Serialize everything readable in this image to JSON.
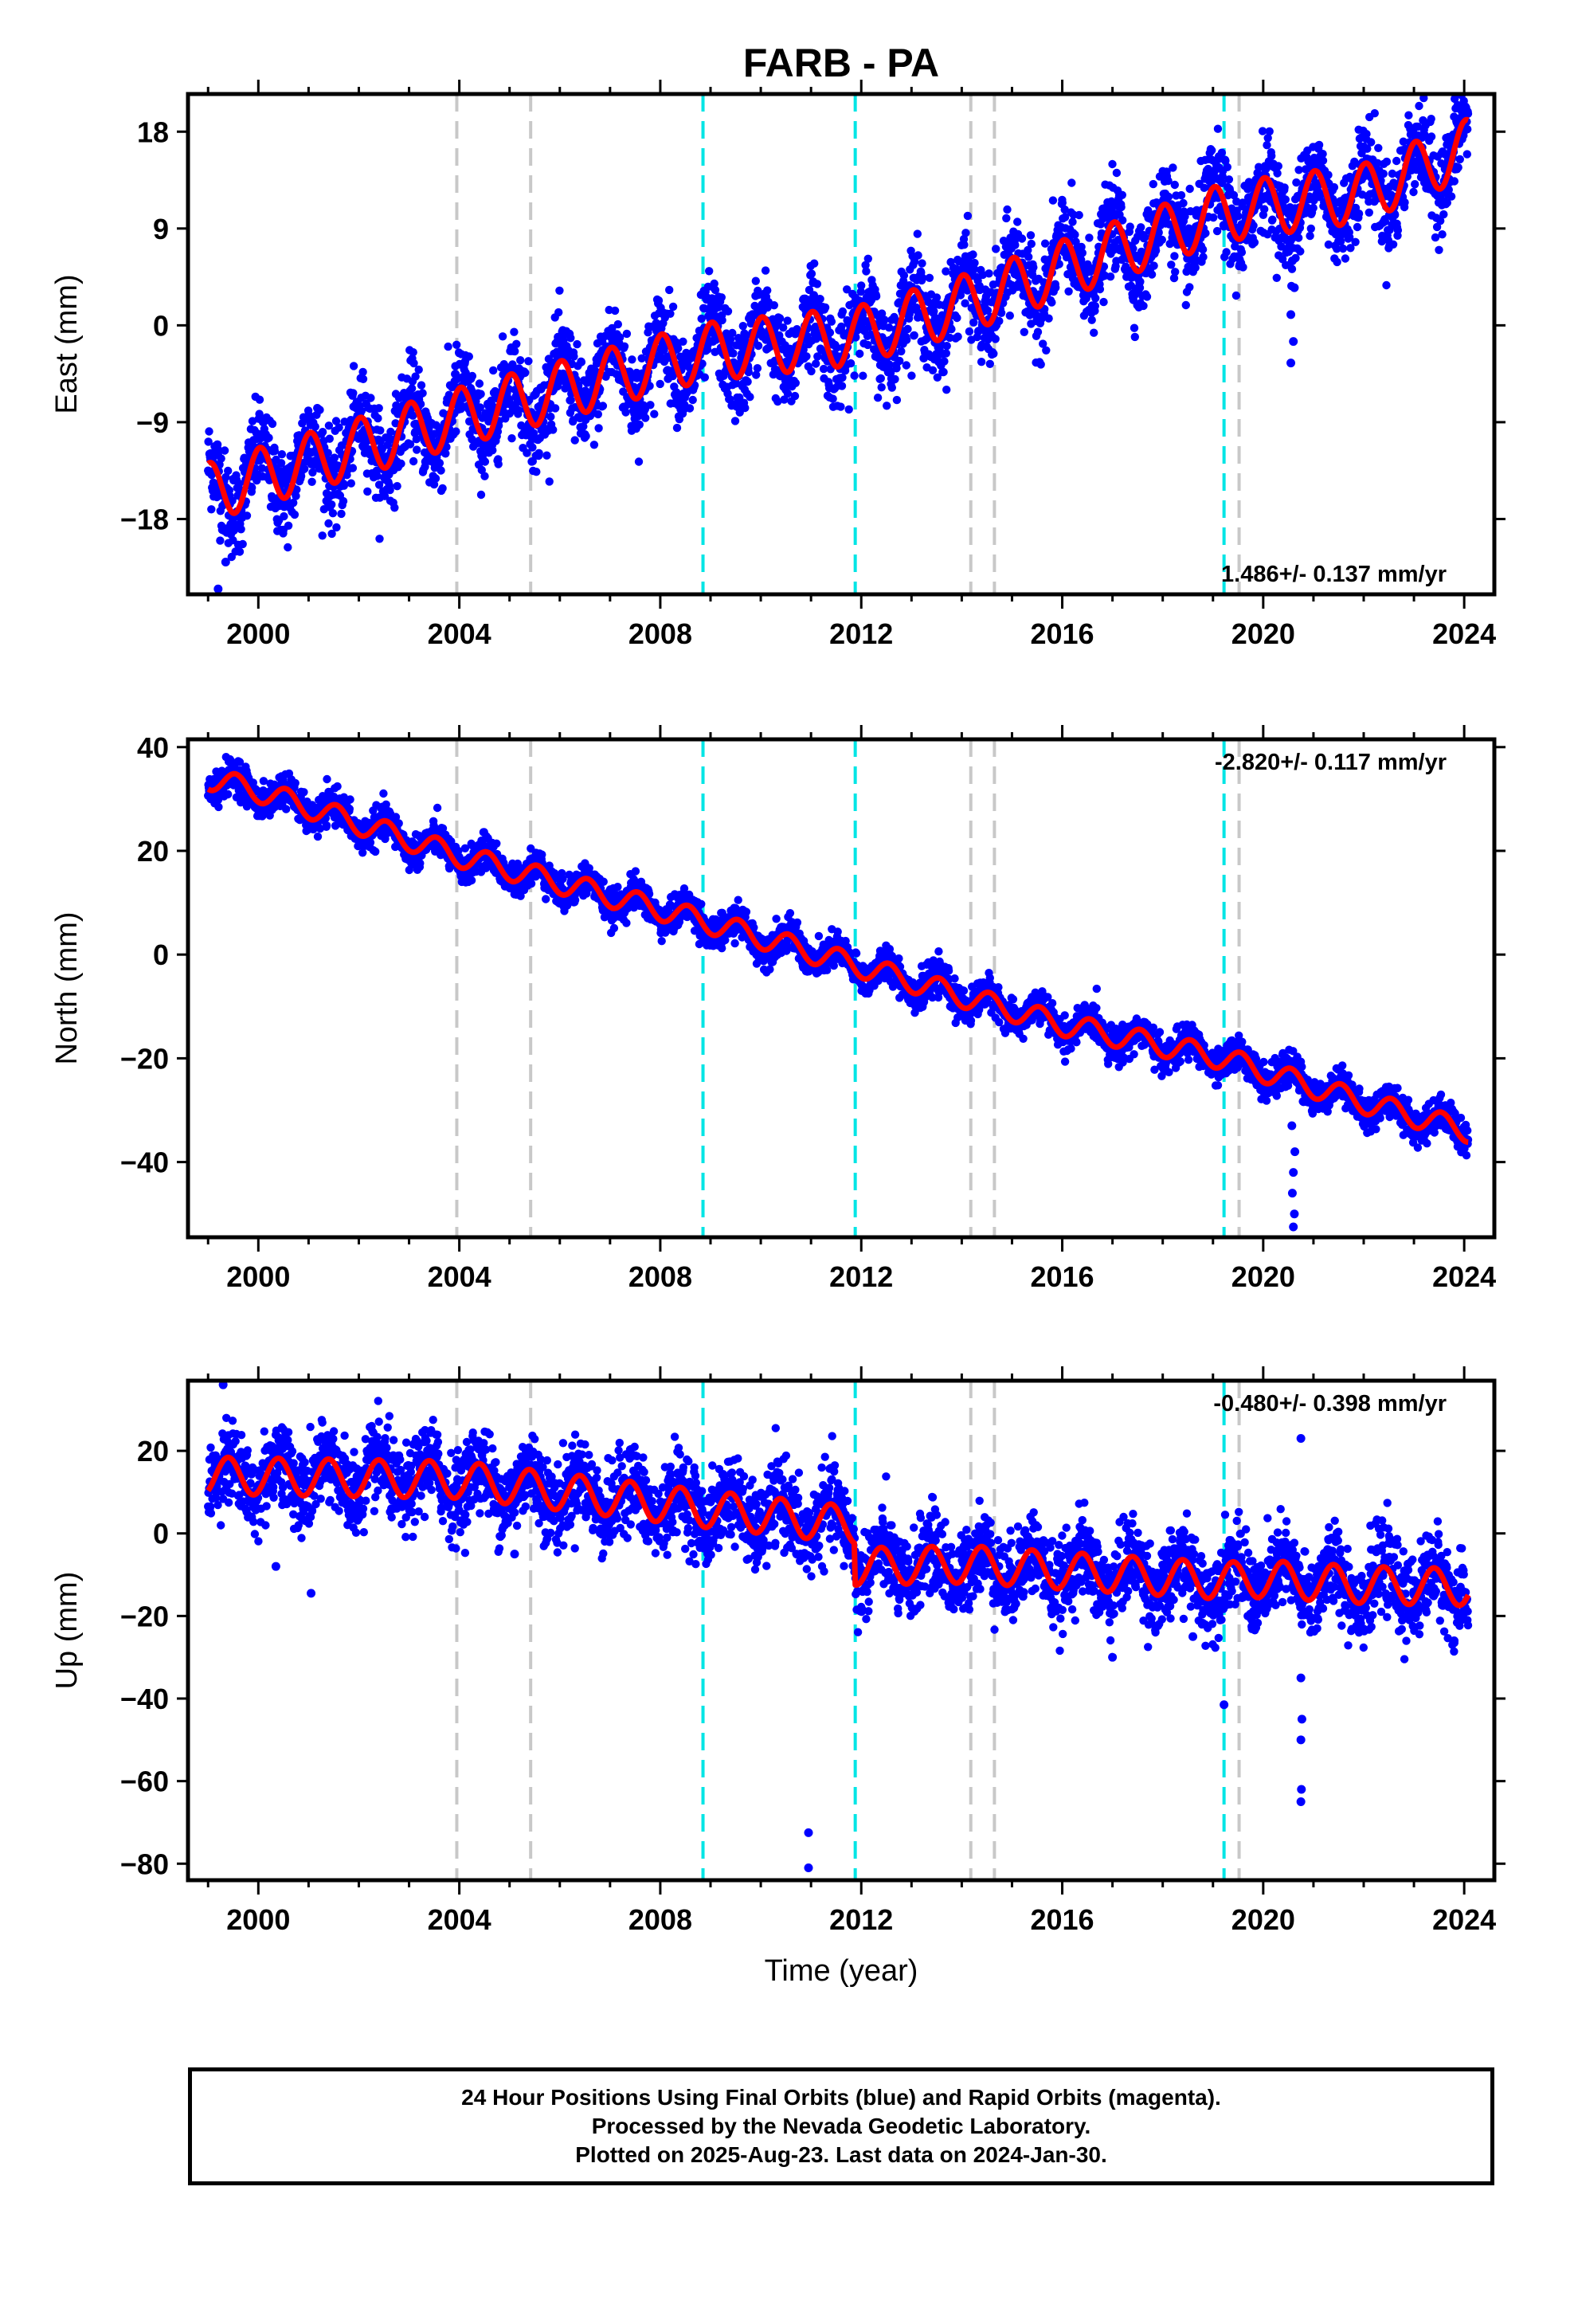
{
  "chart_data": {
    "type": "scatter",
    "title": "FARB - PA",
    "xlabel": "Time (year)",
    "x_range": [
      1998.6,
      2024.6
    ],
    "x_ticks": [
      2000,
      2004,
      2008,
      2012,
      2016,
      2020,
      2024
    ],
    "x_tick_labels": [
      "2000",
      "2004",
      "2008",
      "2012",
      "2016",
      "2020",
      "2024"
    ],
    "data_start": 1999.0,
    "data_end": 2024.08,
    "events": [
      {
        "year": 2003.95,
        "color": "#c8c8c8"
      },
      {
        "year": 2005.42,
        "color": "#c8c8c8"
      },
      {
        "year": 2008.85,
        "color": "#00e5e5"
      },
      {
        "year": 2011.88,
        "color": "#00e5e5"
      },
      {
        "year": 2014.18,
        "color": "#c8c8c8"
      },
      {
        "year": 2014.65,
        "color": "#c8c8c8"
      },
      {
        "year": 2019.22,
        "color": "#00e5e5"
      },
      {
        "year": 2019.52,
        "color": "#c8c8c8"
      }
    ],
    "colors": {
      "points": "#0000ff",
      "model": "#ff0000",
      "frame": "#000000"
    },
    "panels": [
      {
        "name": "east",
        "ylabel": "East (mm)",
        "ylim": [
          -25,
          21.5
        ],
        "yticks": [
          18,
          9,
          0,
          -9,
          -18
        ],
        "ytick_labels": [
          "18",
          "9",
          "0",
          "-9",
          "-18"
        ],
        "rate_text": "1.486+/- 0.137 mm/yr",
        "rate_position": "bottom-right",
        "model": {
          "knots_year": [
            1999.0,
            2004.0,
            2008.85,
            2011.88,
            2014.18,
            2016.0,
            2019.22,
            2020.0,
            2022.0,
            2024.08
          ],
          "knots_mm": [
            -15.5,
            -8.5,
            -2.5,
            -1.0,
            2.2,
            5.2,
            10.5,
            11.0,
            12.3,
            16.5
          ],
          "seasonal_amplitude_mm": 2.7,
          "seasonal_phase_year": 0.78,
          "point_scatter_mm": 2.1
        },
        "outliers": [
          {
            "x": 2020.55,
            "y": -3.5
          },
          {
            "x": 2020.6,
            "y": -1.5
          },
          {
            "x": 2020.55,
            "y": 1.0
          },
          {
            "x": 2020.62,
            "y": 3.5
          },
          {
            "x": 2020.58,
            "y": 6.0
          },
          {
            "x": 1999.2,
            "y": -24.5
          },
          {
            "x": 1999.35,
            "y": -22.0
          }
        ]
      },
      {
        "name": "north",
        "ylabel": "North (mm)",
        "ylim": [
          -54.5,
          41.5
        ],
        "yticks": [
          40,
          20,
          0,
          -20,
          -40
        ],
        "ytick_labels": [
          "40",
          "20",
          "0",
          "-20",
          "-40"
        ],
        "rate_text": "-2.820+/- 0.117 mm/yr",
        "rate_position": "top-right",
        "model": {
          "knots_year": [
            1999.0,
            2000.0,
            2004.0,
            2008.85,
            2011.88,
            2014.18,
            2016.0,
            2019.22,
            2020.0,
            2022.0,
            2024.08
          ],
          "knots_mm": [
            34.0,
            31.5,
            19.0,
            6.5,
            -2.0,
            -8.5,
            -13.5,
            -20.0,
            -22.5,
            -28.5,
            -34.0
          ],
          "seasonal_amplitude_mm": 2.2,
          "seasonal_phase_year": 0.3,
          "point_scatter_mm": 1.6
        },
        "outliers": [
          {
            "x": 2020.6,
            "y": -52.5
          },
          {
            "x": 2020.62,
            "y": -50.0
          },
          {
            "x": 2020.58,
            "y": -46.0
          },
          {
            "x": 2020.6,
            "y": -42.0
          },
          {
            "x": 2020.63,
            "y": -38.0
          },
          {
            "x": 2020.57,
            "y": -33.0
          }
        ]
      },
      {
        "name": "up",
        "ylabel": "Up (mm)",
        "ylim": [
          -84,
          37
        ],
        "yticks": [
          20,
          0,
          -20,
          -40,
          -60,
          -80
        ],
        "ytick_labels": [
          "20",
          "0",
          "-20",
          "-40",
          "-60",
          "-80"
        ],
        "rate_text": "-0.480+/- 0.398 mm/yr",
        "rate_position": "top-right",
        "model": {
          "knots_year": [
            1999.0,
            2004.0,
            2008.85,
            2011.87,
            2011.88,
            2014.18,
            2016.0,
            2019.22,
            2020.0,
            2022.0,
            2024.08
          ],
          "knots_mm": [
            14.0,
            13.0,
            6.0,
            2.0,
            -8.0,
            -7.5,
            -9.0,
            -11.5,
            -11.0,
            -12.5,
            -13.0
          ],
          "seasonal_amplitude_mm": 4.5,
          "seasonal_phase_year": 0.15,
          "point_scatter_mm": 5.0
        },
        "outliers": [
          {
            "x": 2010.95,
            "y": -72.5
          },
          {
            "x": 2010.95,
            "y": -81.0
          },
          {
            "x": 1999.3,
            "y": 36.0
          },
          {
            "x": 2020.75,
            "y": 23.0
          },
          {
            "x": 2020.75,
            "y": -35.0
          },
          {
            "x": 2020.77,
            "y": -45.0
          },
          {
            "x": 2020.75,
            "y": -50.0
          },
          {
            "x": 2020.76,
            "y": -62.0
          },
          {
            "x": 2020.75,
            "y": -65.0
          },
          {
            "x": 2019.22,
            "y": -41.5
          },
          {
            "x": 2000.35,
            "y": -8.0
          },
          {
            "x": 2001.05,
            "y": -14.5
          },
          {
            "x": 2005.1,
            "y": -5.0
          },
          {
            "x": 2017.0,
            "y": -30.0
          },
          {
            "x": 2018.6,
            "y": -25.0
          },
          {
            "x": 2023.8,
            "y": -26.0
          }
        ]
      }
    ]
  },
  "footer": {
    "line1": "24 Hour Positions Using Final Orbits (blue) and Rapid Orbits (magenta).",
    "line2": "Processed by the Nevada Geodetic Laboratory.",
    "line3": "Plotted on 2025-Aug-23. Last data on 2024-Jan-30."
  }
}
